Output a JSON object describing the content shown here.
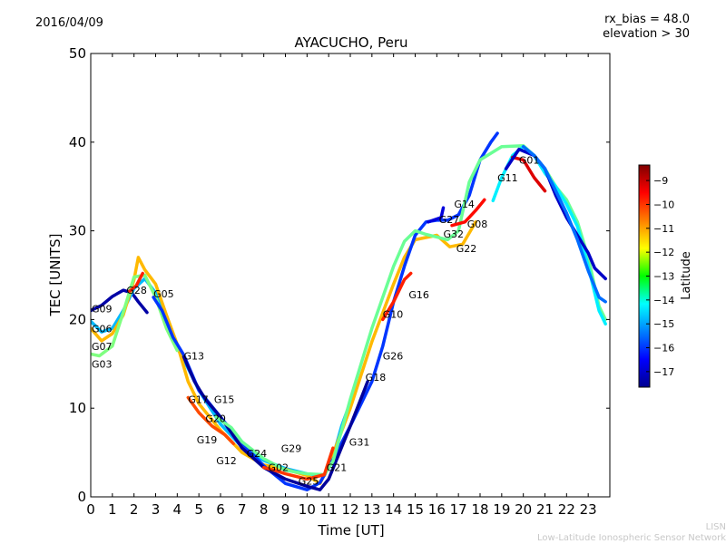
{
  "header": {
    "date": "2016/04/09",
    "rx_bias": "rx_bias = 48.0",
    "elevation": "elevation > 30"
  },
  "watermark": {
    "short": "LISN",
    "long": "Low-Latitude Ionospheric Sensor Network"
  },
  "chart_data": {
    "type": "line",
    "title": "AYACUCHO, Peru",
    "xlabel": "Time [UT]",
    "ylabel": "TEC [UNITS]",
    "xlim": [
      0,
      24
    ],
    "ylim": [
      0,
      50
    ],
    "xticks": [
      "0",
      "1",
      "2",
      "3",
      "4",
      "5",
      "6",
      "7",
      "8",
      "9",
      "10",
      "11",
      "12",
      "13",
      "14",
      "15",
      "16",
      "17",
      "18",
      "19",
      "20",
      "21",
      "22",
      "23"
    ],
    "yticks": [
      "0",
      "10",
      "20",
      "30",
      "40",
      "50"
    ],
    "colorbar": {
      "label": "Latitude",
      "range": [
        -17.65,
        -8.35
      ],
      "ticks": [
        "-9",
        "-10",
        "-11",
        "-12",
        "-13",
        "-14",
        "-15",
        "-16",
        "-17"
      ],
      "colormap": "jet"
    },
    "series": [
      {
        "name": "G09",
        "lat": -17.3,
        "points": [
          [
            0,
            21
          ],
          [
            0.5,
            21.6
          ],
          [
            1,
            22.6
          ],
          [
            1.5,
            23.3
          ],
          [
            1.9,
            23
          ],
          [
            2.2,
            22
          ],
          [
            2.6,
            20.8
          ]
        ]
      },
      {
        "name": "G06",
        "lat": -14.8,
        "points": [
          [
            0,
            19.8
          ],
          [
            0.5,
            18.6
          ],
          [
            1,
            19
          ],
          [
            1.5,
            21
          ],
          [
            2,
            23.5
          ],
          [
            2.5,
            24.6
          ],
          [
            3,
            23
          ],
          [
            3.5,
            20
          ],
          [
            4,
            17
          ],
          [
            4.5,
            14.5
          ],
          [
            5,
            12
          ],
          [
            6,
            8.2
          ],
          [
            7,
            5.6
          ],
          [
            8,
            4.1
          ],
          [
            9,
            3.2
          ],
          [
            10,
            2.6
          ],
          [
            10.8,
            2.4
          ],
          [
            11.2,
            4.5
          ],
          [
            11.6,
            8
          ],
          [
            11.9,
            10
          ]
        ]
      },
      {
        "name": "G07",
        "lat": -11.2,
        "points": [
          [
            0,
            19
          ],
          [
            0.5,
            17.6
          ],
          [
            1,
            18.4
          ],
          [
            1.5,
            20.5
          ],
          [
            2,
            24.5
          ],
          [
            2.2,
            27
          ],
          [
            2.5,
            25.6
          ],
          [
            3,
            24
          ],
          [
            3.5,
            20.5
          ],
          [
            4,
            17.2
          ],
          [
            4.5,
            13
          ],
          [
            5,
            10.5
          ],
          [
            6,
            7.5
          ],
          [
            7,
            5
          ],
          [
            8,
            3.6
          ],
          [
            9,
            3.1
          ],
          [
            10,
            2.4
          ],
          [
            10.6,
            1.5
          ],
          [
            11,
            3.5
          ],
          [
            12,
            10
          ],
          [
            13,
            17.5
          ],
          [
            14,
            24
          ],
          [
            14.5,
            27
          ],
          [
            15,
            29
          ],
          [
            16,
            29.5
          ],
          [
            16.6,
            28.2
          ],
          [
            17.2,
            28.5
          ],
          [
            17.8,
            31
          ]
        ]
      },
      {
        "name": "G03",
        "lat": -13.0,
        "points": [
          [
            0,
            16.1
          ],
          [
            0.4,
            15.9
          ],
          [
            1,
            17
          ],
          [
            1.5,
            20.8
          ],
          [
            2,
            24.8
          ],
          [
            2.5,
            25
          ],
          [
            3,
            22.5
          ],
          [
            3.5,
            19
          ],
          [
            4,
            16.5
          ]
        ]
      },
      {
        "name": "G28",
        "lat": -9.8,
        "points": [
          [
            1.8,
            23.2
          ],
          [
            2.1,
            23.8
          ],
          [
            2.4,
            25.2
          ]
        ]
      },
      {
        "name": "G05",
        "lat": -16.0,
        "points": [
          [
            2.9,
            22.5
          ],
          [
            3.3,
            21
          ],
          [
            3.8,
            18
          ],
          [
            4.3,
            16
          ],
          [
            5,
            12
          ],
          [
            6,
            9
          ],
          [
            7,
            6
          ],
          [
            8,
            3.5
          ],
          [
            9,
            1.5
          ],
          [
            10,
            0.8
          ],
          [
            10.6,
            1.6
          ],
          [
            11.2,
            4.2
          ],
          [
            12,
            8
          ],
          [
            13,
            13
          ],
          [
            13.5,
            17
          ],
          [
            14,
            22
          ],
          [
            14.5,
            26
          ],
          [
            15,
            29.5
          ],
          [
            15.5,
            31
          ],
          [
            16,
            31.2
          ],
          [
            16.5,
            31.2
          ],
          [
            17,
            31.8
          ],
          [
            17.5,
            34
          ],
          [
            18,
            38
          ],
          [
            18.5,
            40
          ],
          [
            18.8,
            41
          ]
        ]
      },
      {
        "name": "G13",
        "lat": -17.4,
        "points": [
          [
            4.3,
            15.8
          ],
          [
            4.8,
            13
          ],
          [
            5.3,
            11
          ],
          [
            6,
            9
          ],
          [
            7,
            5.5
          ],
          [
            8,
            3.3
          ],
          [
            9,
            2
          ],
          [
            10,
            1.2
          ],
          [
            10.6,
            0.8
          ],
          [
            11,
            2
          ],
          [
            11.5,
            5
          ],
          [
            12,
            8
          ],
          [
            12.8,
            13
          ]
        ]
      },
      {
        "name": "G17",
        "lat": -10.2,
        "points": [
          [
            4.5,
            11.2
          ],
          [
            5,
            9.5
          ],
          [
            5.6,
            8
          ],
          [
            6.2,
            7
          ],
          [
            6.6,
            6
          ]
        ]
      },
      {
        "name": "G12",
        "lat": -13.2,
        "points": [
          [
            5.8,
            9
          ],
          [
            6.5,
            7.8
          ],
          [
            7,
            6.2
          ],
          [
            8,
            4.3
          ],
          [
            9,
            3
          ],
          [
            10,
            2.6
          ],
          [
            10.8,
            2.5
          ],
          [
            11.2,
            4
          ],
          [
            12,
            11
          ],
          [
            13,
            19
          ],
          [
            14,
            26
          ],
          [
            14.5,
            28.8
          ],
          [
            15,
            30
          ],
          [
            15.5,
            29.6
          ],
          [
            16,
            29.3
          ],
          [
            16.5,
            29
          ],
          [
            17,
            30
          ],
          [
            17.5,
            35.5
          ],
          [
            18,
            38
          ],
          [
            19,
            39.5
          ],
          [
            20,
            39.6
          ],
          [
            20.5,
            38.5
          ],
          [
            21,
            37
          ],
          [
            21.5,
            35
          ],
          [
            22,
            33.5
          ],
          [
            22.5,
            31
          ],
          [
            23,
            27
          ],
          [
            23.5,
            21.5
          ],
          [
            23.8,
            20
          ]
        ]
      },
      {
        "name": "G21",
        "lat": -10.0,
        "points": [
          [
            8,
            3.3
          ],
          [
            8.5,
            3
          ],
          [
            9,
            2.6
          ],
          [
            10,
            2
          ],
          [
            10.8,
            2.5
          ],
          [
            11.2,
            5.5
          ]
        ]
      },
      {
        "name": "G16",
        "lat": -9.8,
        "points": [
          [
            13.5,
            20
          ],
          [
            14,
            22
          ],
          [
            14.5,
            24.5
          ],
          [
            14.8,
            25.2
          ]
        ]
      },
      {
        "name": "G08",
        "lat": -9.6,
        "points": [
          [
            16.7,
            30.6
          ],
          [
            17.3,
            31
          ],
          [
            17.8,
            32.3
          ],
          [
            18.2,
            33.5
          ]
        ]
      },
      {
        "name": "G27",
        "lat": -16.8,
        "points": [
          [
            15.6,
            31
          ],
          [
            16.2,
            31.5
          ],
          [
            16.3,
            32.6
          ]
        ]
      },
      {
        "name": "G11",
        "lat": -14.3,
        "points": [
          [
            18.6,
            33.4
          ],
          [
            19,
            36
          ],
          [
            19.5,
            38.5
          ],
          [
            20,
            39.5
          ],
          [
            20.5,
            38.5
          ],
          [
            21,
            36.5
          ],
          [
            21.5,
            35
          ],
          [
            22,
            33
          ],
          [
            22.5,
            30.5
          ],
          [
            23,
            26
          ],
          [
            23.5,
            21
          ],
          [
            23.8,
            19.5
          ]
        ]
      },
      {
        "name": "G01",
        "lat": -9.2,
        "points": [
          [
            19.5,
            38.3
          ],
          [
            20,
            38
          ],
          [
            20.5,
            36
          ],
          [
            21,
            34.5
          ]
        ]
      },
      {
        "name": "G22",
        "lat": -17.0,
        "points": [
          [
            19.2,
            37
          ],
          [
            19.8,
            39.2
          ],
          [
            20.5,
            38.5
          ],
          [
            21,
            37
          ],
          [
            21.5,
            34
          ],
          [
            22,
            31.5
          ],
          [
            22.5,
            29.5
          ],
          [
            23,
            27.5
          ],
          [
            23.3,
            25.8
          ],
          [
            23.8,
            24.6
          ]
        ]
      },
      {
        "name": "G26",
        "lat": -15.5,
        "points": [
          [
            20,
            39.5
          ],
          [
            20.5,
            38.5
          ],
          [
            21,
            37
          ],
          [
            22,
            32
          ],
          [
            22.5,
            29
          ],
          [
            23,
            25.5
          ],
          [
            23.5,
            22.5
          ],
          [
            23.8,
            22
          ]
        ]
      }
    ],
    "annotations": [
      {
        "text": "G09",
        "t": 0,
        "tec": 21.2
      },
      {
        "text": "G06",
        "t": 0,
        "tec": 20.1
      },
      {
        "text": "G07",
        "t": 0,
        "tec": 19.2
      },
      {
        "text": "G03",
        "t": 0,
        "tec": 16.1
      },
      {
        "text": "G28",
        "t": 1.65,
        "tec": 23.3
      },
      {
        "text": "G05",
        "t": 2.9,
        "tec": 22.9
      },
      {
        "text": "G13",
        "t": 4.3,
        "tec": 15.9
      },
      {
        "text": "G17",
        "t": 4.5,
        "tec": 11.0
      },
      {
        "text": "G20",
        "t": 5.3,
        "tec": 11.1
      },
      {
        "text": "G15",
        "t": 5.7,
        "tec": 11.0
      },
      {
        "text": "G19",
        "t": 4.9,
        "tec": 9.8
      },
      {
        "text": "G12",
        "t": 5.8,
        "tec": 8.6
      },
      {
        "text": "G24",
        "t": 7.2,
        "tec": 4.9
      },
      {
        "text": "G02",
        "t": 8.2,
        "tec": 3.3
      },
      {
        "text": "G29",
        "t": 8.8,
        "tec": 3.2
      },
      {
        "text": "G25",
        "t": 9.6,
        "tec": 1.8
      },
      {
        "text": "G21",
        "t": 10.9,
        "tec": 3.3
      },
      {
        "text": "G31",
        "t": 11.95,
        "tec": 6.2
      },
      {
        "text": "G18",
        "t": 12.7,
        "tec": 13.5
      },
      {
        "text": "G26",
        "t": 13.5,
        "tec": 15.9
      },
      {
        "text": "G10",
        "t": 13.5,
        "tec": 20.6
      },
      {
        "text": "G16",
        "t": 14.7,
        "tec": 22.8
      },
      {
        "text": "G27",
        "t": 16.1,
        "tec": 31.3
      },
      {
        "text": "G32",
        "t": 16.3,
        "tec": 30.8
      },
      {
        "text": "G14",
        "t": 16.8,
        "tec": 30.8
      },
      {
        "text": "G08",
        "t": 17.4,
        "tec": 30.8
      },
      {
        "text": "G22",
        "t": 16.9,
        "tec": 28.0
      },
      {
        "text": "G11",
        "t": 18.8,
        "tec": 36.0
      },
      {
        "text": "G01",
        "t": 19.8,
        "tec": 38.0
      }
    ]
  }
}
